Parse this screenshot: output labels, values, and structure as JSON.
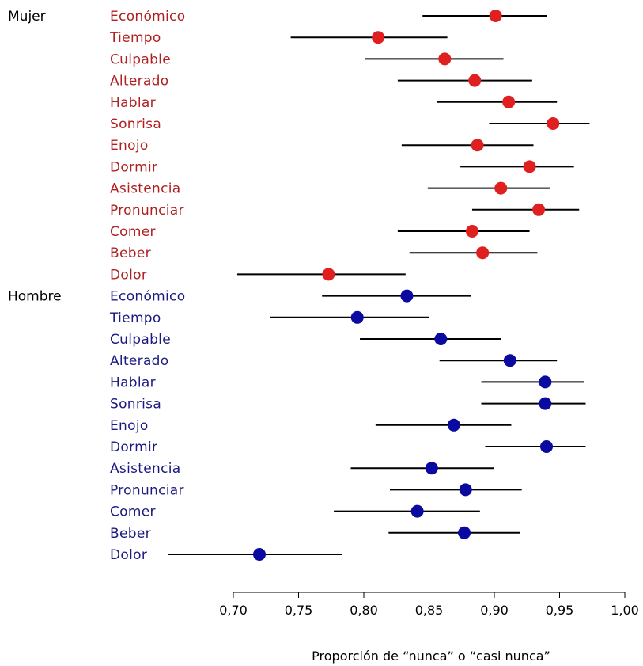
{
  "chart_data": {
    "type": "forest",
    "xlabel": "Proporción de “nunca” o “casi nunca”",
    "xlim": [
      0.7,
      1.0
    ],
    "xticks": [
      "0,70",
      "0,75",
      "0,80",
      "0,85",
      "0,90",
      "0,95",
      "1,00"
    ],
    "groups": [
      {
        "name": "Mujer",
        "color": "#e02020",
        "label_color": "#b02020",
        "items": [
          {
            "label": "Económico",
            "value": 0.901,
            "lower": 0.845,
            "upper": 0.94
          },
          {
            "label": "Tiempo",
            "value": 0.811,
            "lower": 0.744,
            "upper": 0.864
          },
          {
            "label": "Culpable",
            "value": 0.862,
            "lower": 0.801,
            "upper": 0.907
          },
          {
            "label": "Alterado",
            "value": 0.885,
            "lower": 0.826,
            "upper": 0.929
          },
          {
            "label": "Hablar",
            "value": 0.911,
            "lower": 0.856,
            "upper": 0.948
          },
          {
            "label": "Sonrisa",
            "value": 0.945,
            "lower": 0.896,
            "upper": 0.973
          },
          {
            "label": "Enojo",
            "value": 0.887,
            "lower": 0.829,
            "upper": 0.93
          },
          {
            "label": "Dormir",
            "value": 0.927,
            "lower": 0.874,
            "upper": 0.961
          },
          {
            "label": "Asistencia",
            "value": 0.905,
            "lower": 0.849,
            "upper": 0.943
          },
          {
            "label": "Pronunciar",
            "value": 0.934,
            "lower": 0.883,
            "upper": 0.965
          },
          {
            "label": "Comer",
            "value": 0.883,
            "lower": 0.826,
            "upper": 0.927
          },
          {
            "label": "Beber",
            "value": 0.891,
            "lower": 0.835,
            "upper": 0.933
          },
          {
            "label": "Dolor",
            "value": 0.773,
            "lower": 0.703,
            "upper": 0.832
          }
        ]
      },
      {
        "name": "Hombre",
        "color": "#0a0aa0",
        "label_color": "#1a1a80",
        "items": [
          {
            "label": "Económico",
            "value": 0.833,
            "lower": 0.768,
            "upper": 0.882
          },
          {
            "label": "Tiempo",
            "value": 0.795,
            "lower": 0.728,
            "upper": 0.85
          },
          {
            "label": "Culpable",
            "value": 0.859,
            "lower": 0.797,
            "upper": 0.905
          },
          {
            "label": "Alterado",
            "value": 0.912,
            "lower": 0.858,
            "upper": 0.948
          },
          {
            "label": "Hablar",
            "value": 0.939,
            "lower": 0.89,
            "upper": 0.969
          },
          {
            "label": "Sonrisa",
            "value": 0.939,
            "lower": 0.89,
            "upper": 0.97
          },
          {
            "label": "Enojo",
            "value": 0.869,
            "lower": 0.809,
            "upper": 0.913
          },
          {
            "label": "Dormir",
            "value": 0.94,
            "lower": 0.893,
            "upper": 0.97
          },
          {
            "label": "Asistencia",
            "value": 0.852,
            "lower": 0.79,
            "upper": 0.9
          },
          {
            "label": "Pronunciar",
            "value": 0.878,
            "lower": 0.82,
            "upper": 0.921
          },
          {
            "label": "Comer",
            "value": 0.841,
            "lower": 0.777,
            "upper": 0.889
          },
          {
            "label": "Beber",
            "value": 0.877,
            "lower": 0.819,
            "upper": 0.92
          },
          {
            "label": "Dolor",
            "value": 0.72,
            "lower": 0.65,
            "upper": 0.783
          }
        ]
      }
    ]
  }
}
